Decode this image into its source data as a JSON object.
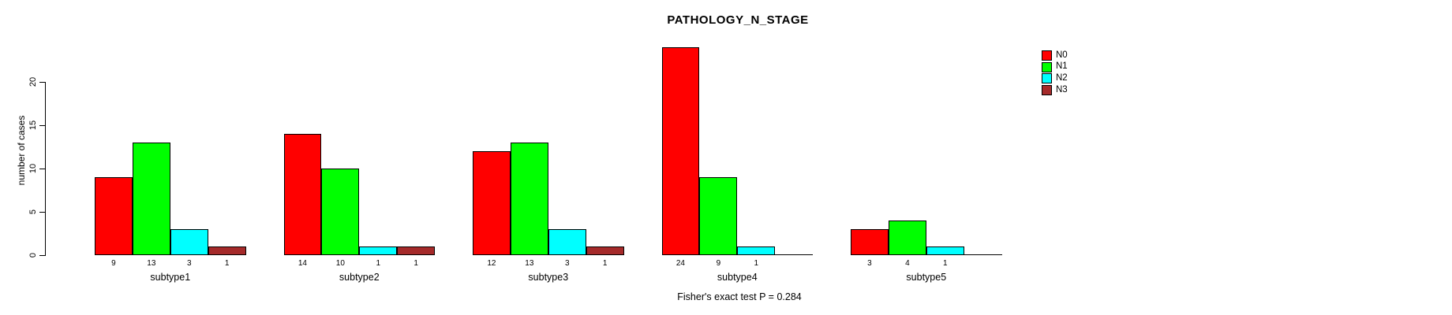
{
  "chart_data": {
    "type": "bar",
    "title": "PATHOLOGY_N_STAGE",
    "ylabel": "number of cases",
    "xlabel": "",
    "categories": [
      "subtype1",
      "subtype2",
      "subtype3",
      "subtype4",
      "subtype5"
    ],
    "series": [
      {
        "name": "N0",
        "color": "#ff0000",
        "values": [
          9,
          14,
          12,
          24,
          3
        ]
      },
      {
        "name": "N1",
        "color": "#00ff00",
        "values": [
          13,
          10,
          13,
          9,
          4
        ]
      },
      {
        "name": "N2",
        "color": "#00ffff",
        "values": [
          3,
          1,
          3,
          1,
          1
        ]
      },
      {
        "name": "N3",
        "color": "#a52a2a",
        "values": [
          1,
          1,
          1,
          0,
          0
        ]
      }
    ],
    "bar_value_labels_shown_for_nonzero_only": true,
    "yticks": [
      0,
      5,
      10,
      15,
      20
    ],
    "ylim": [
      0,
      24
    ],
    "grid": false,
    "legend_position": "right-outside",
    "annotation": "Fisher's exact test P = 0.284",
    "colors": {
      "background": "#ffffff",
      "axis": "#000000",
      "bar_border": "#000000",
      "text": "#000000"
    }
  }
}
